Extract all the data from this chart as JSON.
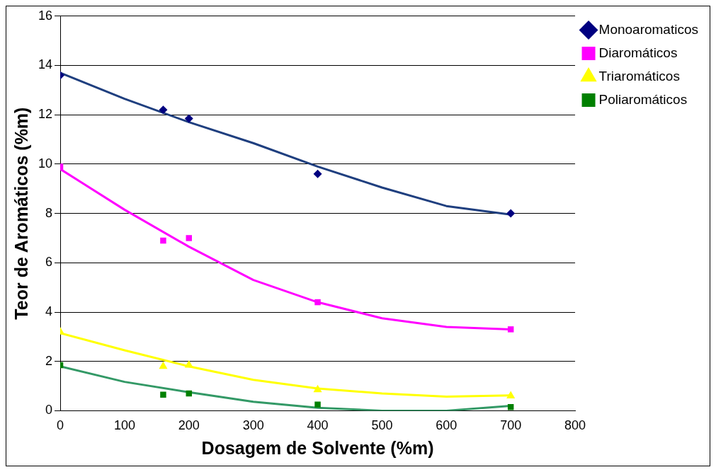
{
  "chart_data": {
    "type": "scatter",
    "xlabel": "Dosagem de Solvente (%m)",
    "ylabel": "Teor de Aromáticos (%m)",
    "xlim": [
      0,
      800
    ],
    "xticks": [
      0,
      100,
      200,
      300,
      400,
      500,
      600,
      700,
      800
    ],
    "ylim": [
      0,
      16
    ],
    "yticks": [
      0,
      2,
      4,
      6,
      8,
      10,
      12,
      14,
      16
    ],
    "grid": "y",
    "legend": "top right",
    "series": [
      {
        "name": "Monoaromaticos",
        "color": "#000080",
        "marker": "diamond",
        "x": [
          0,
          160,
          200,
          400,
          700
        ],
        "values": [
          13.6,
          12.2,
          11.85,
          9.6,
          8.0
        ]
      },
      {
        "name": "Diaromáticos",
        "color": "#ff00ff",
        "marker": "square",
        "x": [
          0,
          160,
          200,
          400,
          700
        ],
        "values": [
          9.9,
          6.9,
          7.0,
          4.4,
          3.3
        ]
      },
      {
        "name": "Triaromáticos",
        "color": "#ffff00",
        "marker": "triangle",
        "x": [
          0,
          160,
          200,
          400,
          700
        ],
        "values": [
          3.2,
          1.8,
          1.85,
          0.85,
          0.6
        ]
      },
      {
        "name": "Poliaromáticos",
        "color": "#008000",
        "marker": "square",
        "x": [
          0,
          160,
          200,
          400,
          700
        ],
        "values": [
          1.85,
          0.65,
          0.7,
          0.25,
          0.15
        ]
      },
      {
        "type": "line",
        "color": "#1f3f7f",
        "marker": "none",
        "x": [
          0,
          100,
          200,
          300,
          400,
          500,
          600,
          700
        ],
        "values": [
          13.7,
          12.65,
          11.7,
          10.85,
          9.9,
          9.05,
          8.3,
          7.95
        ]
      },
      {
        "type": "line",
        "color": "#ff00ff",
        "marker": "none",
        "x": [
          0,
          100,
          200,
          300,
          400,
          500,
          600,
          700
        ],
        "values": [
          9.8,
          8.15,
          6.65,
          5.3,
          4.4,
          3.75,
          3.4,
          3.3
        ]
      },
      {
        "type": "line",
        "color": "#ffff00",
        "marker": "none",
        "x": [
          0,
          100,
          200,
          300,
          400,
          500,
          600,
          700
        ],
        "values": [
          3.15,
          2.45,
          1.8,
          1.25,
          0.9,
          0.7,
          0.57,
          0.62
        ]
      },
      {
        "type": "line",
        "color": "#339966",
        "marker": "none",
        "x": [
          0,
          100,
          200,
          300,
          400,
          500,
          600,
          700
        ],
        "values": [
          1.8,
          1.17,
          0.75,
          0.36,
          0.12,
          0,
          0,
          0.2
        ]
      }
    ]
  }
}
